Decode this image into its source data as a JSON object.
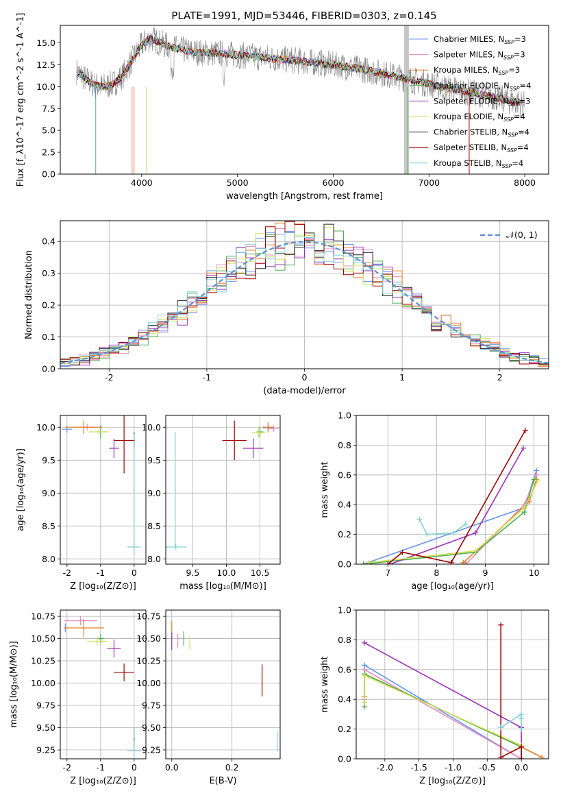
{
  "figure_title": "PLATE=1991, MJD=53446, FIBERID=0303, z=0.145",
  "colors": {
    "chabrier_miles": "#6495ED",
    "salpeter_miles": "#E78AC3",
    "kroupa_miles": "#E67E22",
    "chabrier_elodie": "#4CAF50",
    "salpeter_elodie": "#9B30B8",
    "kroupa_elodie": "#D4E157",
    "chabrier_stelib": "#202020",
    "salpeter_stelib": "#A00000",
    "kroupa_stelib": "#7FD1D8",
    "data_grey": "#808080",
    "gaussian": "#5B8ED6"
  },
  "chart_data": [
    {
      "id": "spectrum",
      "type": "line",
      "title": "PLATE=1991, MJD=53446, FIBERID=0303, z=0.145",
      "xlabel": "wavelength [Angstrom, rest frame]",
      "ylabel": "Flux [f_λ10^-17 erg cm^-2 s^-1 A^-1]",
      "xlim": [
        3150,
        8250
      ],
      "ylim": [
        0,
        17
      ],
      "xticks": [
        4000,
        5000,
        6000,
        7000,
        8000
      ],
      "yticks": [
        0.0,
        2.5,
        5.0,
        7.5,
        10.0,
        12.5,
        15.0
      ],
      "legend_placement": "upper right",
      "legend": [
        {
          "label": "Chabrier MILES, N",
          "sub": "SSP",
          "suffix": "=3",
          "color": "#6495ED"
        },
        {
          "label": "Salpeter MILES, N",
          "sub": "SSP",
          "suffix": "=3",
          "color": "#E78AC3"
        },
        {
          "label": "Kroupa MILES, N",
          "sub": "SSP",
          "suffix": "=3",
          "color": "#E67E22"
        },
        {
          "label": "Chabrier ELODIE, N",
          "sub": "SSP",
          "suffix": "=4",
          "color": "#4CAF50"
        },
        {
          "label": "Salpeter ELODIE, N",
          "sub": "SSP",
          "suffix": "=3",
          "color": "#9B30B8"
        },
        {
          "label": "Kroupa ELODIE, N",
          "sub": "SSP",
          "suffix": "=4",
          "color": "#D4E157"
        },
        {
          "label": "Chabrier STELIB, N",
          "sub": "SSP",
          "suffix": "=4",
          "color": "#202020"
        },
        {
          "label": "Salpeter STELIB, N",
          "sub": "SSP",
          "suffix": "=4",
          "color": "#A00000"
        },
        {
          "label": "Kroupa STELIB, N",
          "sub": "SSP",
          "suffix": "=4",
          "color": "#7FD1D8"
        }
      ],
      "continuum": {
        "x": [
          3300,
          3400,
          3500,
          3600,
          3700,
          3800,
          3900,
          4000,
          4100,
          4300,
          4500,
          4800,
          5200,
          5600,
          6000,
          6400,
          6800,
          7200,
          7600,
          8000
        ],
        "y": [
          12.0,
          11.0,
          10.2,
          10.0,
          10.3,
          11.2,
          13.0,
          14.8,
          15.5,
          14.5,
          14.0,
          13.8,
          13.4,
          13.0,
          12.5,
          11.8,
          10.8,
          9.8,
          9.0,
          8.0
        ]
      }
    },
    {
      "id": "residuals",
      "type": "line",
      "xlabel": "(data-model)/error",
      "ylabel": "Normed distribution",
      "xlim": [
        -2.5,
        2.5
      ],
      "ylim": [
        0,
        0.465
      ],
      "xticks": [
        -2,
        -1,
        0,
        1,
        2
      ],
      "yticks": [
        0.0,
        0.1,
        0.2,
        0.3,
        0.4
      ],
      "legend_placement": "upper right",
      "legend": [
        {
          "label": "𝒩(0, 1)",
          "color": "#5B8ED6"
        }
      ],
      "series": [
        {
          "name": "N(0,1)",
          "mu": 0,
          "sigma": 1
        }
      ]
    },
    {
      "id": "age_vs_Z",
      "type": "scatter",
      "xlabel": "Z [log₁₀(Z/Z⊙)]",
      "ylabel": "age  [log₁₀(age/yr)]",
      "xlim": [
        -2.2,
        0.35
      ],
      "ylim": [
        7.92,
        10.18
      ],
      "xticks": [
        -2,
        -1,
        0
      ],
      "yticks": [
        8.0,
        8.5,
        9.0,
        9.5,
        10.0
      ],
      "points": [
        {
          "x": -2.0,
          "y": 9.97,
          "xerr": 0.15,
          "yerr": 0.05,
          "color": "#6495ED"
        },
        {
          "x": -1.4,
          "y": 10.0,
          "xerr": 0.25,
          "yerr": 0.05,
          "color": "#E78AC3"
        },
        {
          "x": -1.5,
          "y": 10.0,
          "xerr": 0.55,
          "yerr": 0.1,
          "color": "#E67E22"
        },
        {
          "x": -1.0,
          "y": 9.93,
          "xerr": 0.15,
          "yerr": 0.1,
          "color": "#4CAF50"
        },
        {
          "x": -0.6,
          "y": 9.68,
          "xerr": 0.15,
          "yerr": 0.15,
          "color": "#9B30B8"
        },
        {
          "x": -1.05,
          "y": 9.93,
          "xerr": 0.3,
          "yerr": 0.05,
          "color": "#D4E157"
        },
        {
          "x": 0.0,
          "y": 9.8,
          "xerr": 0.02,
          "yerr": 0.12,
          "color": "#202020"
        },
        {
          "x": -0.3,
          "y": 9.8,
          "xerr": 0.3,
          "yerr": 0.5,
          "color": "#A00000"
        },
        {
          "x": 0.0,
          "y": 8.18,
          "xerr": 0.2,
          "yerr": 0.12,
          "color": "#7FD1D8"
        },
        {
          "x": 0.0,
          "y": 9.05,
          "xerr": 0.02,
          "yerr": 0.85,
          "color": "#7FD1D8"
        }
      ]
    },
    {
      "id": "age_vs_mass",
      "type": "scatter",
      "xlabel": "mass [log₁₀(M/M⊙)]",
      "ylabel": "",
      "xlim": [
        9.1,
        10.8
      ],
      "ylim": [
        7.92,
        10.18
      ],
      "xticks": [
        9.5,
        10.0,
        10.5
      ],
      "yticks": [
        8.0,
        8.5,
        9.0,
        9.5,
        10.0
      ],
      "points": [
        {
          "x": 10.62,
          "y": 9.99,
          "xerr": 0.08,
          "yerr": 0.05,
          "color": "#6495ED"
        },
        {
          "x": 10.7,
          "y": 9.98,
          "xerr": 0.08,
          "yerr": 0.05,
          "color": "#E78AC3"
        },
        {
          "x": 10.62,
          "y": 10.0,
          "xerr": 0.08,
          "yerr": 0.08,
          "color": "#E67E22"
        },
        {
          "x": 10.5,
          "y": 9.93,
          "xerr": 0.05,
          "yerr": 0.08,
          "color": "#4CAF50"
        },
        {
          "x": 10.4,
          "y": 9.68,
          "xerr": 0.15,
          "yerr": 0.15,
          "color": "#9B30B8"
        },
        {
          "x": 10.48,
          "y": 9.92,
          "xerr": 0.1,
          "yerr": 0.08,
          "color": "#D4E157"
        },
        {
          "x": 10.12,
          "y": 9.8,
          "xerr": 0.18,
          "yerr": 0.3,
          "color": "#A00000"
        },
        {
          "x": 9.25,
          "y": 8.18,
          "xerr": 0.16,
          "yerr": 0.05,
          "color": "#7FD1D8"
        },
        {
          "x": 9.24,
          "y": 9.05,
          "xerr": 0.01,
          "yerr": 0.88,
          "color": "#7FD1D8"
        }
      ]
    },
    {
      "id": "massweight_vs_age",
      "type": "line",
      "xlabel": "age  [log₁₀(age/yr)]",
      "ylabel": "mass weight",
      "xlim": [
        6.35,
        10.3
      ],
      "ylim": [
        0.0,
        1.0
      ],
      "xticks": [
        7,
        8,
        9,
        10
      ],
      "yticks": [
        0.0,
        0.2,
        0.4,
        0.6,
        0.8,
        1.0
      ],
      "series": [
        {
          "name": "Chabrier MILES",
          "color": "#6495ED",
          "x": [
            6.5,
            9.8,
            10.05
          ],
          "y": [
            0.0,
            0.38,
            0.63
          ]
        },
        {
          "name": "Salpeter MILES",
          "color": "#E78AC3",
          "x": [
            8.6,
            9.8,
            10.05
          ],
          "y": [
            0.0,
            0.4,
            0.6
          ]
        },
        {
          "name": "Kroupa MILES",
          "color": "#E67E22",
          "x": [
            8.55,
            9.9,
            10.05
          ],
          "y": [
            0.01,
            0.42,
            0.57
          ]
        },
        {
          "name": "Chabrier ELODIE",
          "color": "#4CAF50",
          "x": [
            6.5,
            8.8,
            9.8,
            10.0
          ],
          "y": [
            0.0,
            0.08,
            0.35,
            0.57
          ]
        },
        {
          "name": "Salpeter ELODIE",
          "color": "#9B30B8",
          "x": [
            7.05,
            8.8,
            9.78
          ],
          "y": [
            0.0,
            0.21,
            0.78
          ]
        },
        {
          "name": "Kroupa ELODIE",
          "color": "#D4E157",
          "x": [
            6.6,
            8.8,
            9.8,
            10.08
          ],
          "y": [
            0.01,
            0.09,
            0.38,
            0.56
          ]
        },
        {
          "name": "Salpeter STELIB",
          "color": "#A00000",
          "x": [
            7.0,
            7.3,
            8.3,
            9.82
          ],
          "y": [
            0.0,
            0.08,
            0.01,
            0.9
          ]
        },
        {
          "name": "Kroupa STELIB",
          "color": "#7FD1D8",
          "x": [
            7.65,
            7.8,
            8.35,
            8.6
          ],
          "y": [
            0.3,
            0.2,
            0.21,
            0.27
          ]
        }
      ]
    },
    {
      "id": "mass_vs_Z",
      "type": "scatter",
      "xlabel": "Z [log₁₀(Z/Z⊙)]",
      "ylabel": "mass [log₁₀(M/M⊙)]",
      "xlim": [
        -2.2,
        0.35
      ],
      "ylim": [
        9.15,
        10.82
      ],
      "xticks": [
        -2,
        -1,
        0
      ],
      "yticks": [
        9.25,
        9.5,
        9.75,
        10.0,
        10.25,
        10.5,
        10.75
      ],
      "points": [
        {
          "x": -2.05,
          "y": 10.62,
          "xerr": 0.05,
          "yerr": 0.05,
          "color": "#6495ED"
        },
        {
          "x": -1.6,
          "y": 10.7,
          "xerr": 0.5,
          "yerr": 0.05,
          "color": "#E78AC3"
        },
        {
          "x": -1.5,
          "y": 10.62,
          "xerr": 0.6,
          "yerr": 0.1,
          "color": "#E67E22"
        },
        {
          "x": -1.0,
          "y": 10.5,
          "xerr": 0.1,
          "yerr": 0.05,
          "color": "#4CAF50"
        },
        {
          "x": -0.6,
          "y": 10.39,
          "xerr": 0.2,
          "yerr": 0.1,
          "color": "#9B30B8"
        },
        {
          "x": -1.1,
          "y": 10.47,
          "xerr": 0.3,
          "yerr": 0.05,
          "color": "#D4E157"
        },
        {
          "x": 0.0,
          "y": 9.37,
          "xerr": 0.02,
          "yerr": 0.12,
          "color": "#202020"
        },
        {
          "x": -0.3,
          "y": 10.12,
          "xerr": 0.3,
          "yerr": 0.1,
          "color": "#A00000"
        },
        {
          "x": 0.0,
          "y": 9.24,
          "xerr": 0.2,
          "yerr": 0.25,
          "color": "#7FD1D8"
        }
      ]
    },
    {
      "id": "mass_vs_ebv",
      "type": "scatter",
      "xlabel": "E(B-V)",
      "ylabel": "",
      "xlim": [
        -0.02,
        0.36
      ],
      "ylim": [
        9.15,
        10.82
      ],
      "xticks": [
        0.0,
        0.2
      ],
      "yticks": [
        9.25,
        9.5,
        9.75,
        10.0,
        10.25,
        10.5,
        10.75
      ],
      "points": [
        {
          "x": 0.0,
          "y": 10.6,
          "xerr": 0,
          "yerr": 0.1,
          "color": "#E67E22"
        },
        {
          "x": 0.0,
          "y": 10.47,
          "xerr": 0,
          "yerr": 0.1,
          "color": "#9B30B8"
        },
        {
          "x": 0.02,
          "y": 10.47,
          "xerr": 0,
          "yerr": 0.08,
          "color": "#E78AC3"
        },
        {
          "x": 0.04,
          "y": 10.5,
          "xerr": 0,
          "yerr": 0.08,
          "color": "#4CAF50"
        },
        {
          "x": 0.06,
          "y": 10.45,
          "xerr": 0,
          "yerr": 0.08,
          "color": "#D4E157"
        },
        {
          "x": 0.3,
          "y": 10.03,
          "xerr": 0,
          "yerr": 0.18,
          "color": "#A00000"
        },
        {
          "x": 0.35,
          "y": 9.35,
          "xerr": 0,
          "yerr": 0.12,
          "color": "#7FD1D8"
        }
      ]
    },
    {
      "id": "massweight_vs_Z",
      "type": "line",
      "xlabel": "Z [log₁₀(Z/Z⊙)]",
      "ylabel": "mass weight",
      "xlim": [
        -2.42,
        0.4
      ],
      "ylim": [
        0.0,
        1.0
      ],
      "xticks": [
        -2.0,
        -1.5,
        -1.0,
        -0.5,
        0.0
      ],
      "yticks": [
        0.0,
        0.2,
        0.4,
        0.6,
        0.8,
        1.0
      ],
      "series": [
        {
          "name": "Chabrier MILES",
          "color": "#6495ED",
          "x": [
            -2.3,
            -2.3,
            0.0
          ],
          "y": [
            0.38,
            0.63,
            0.0
          ]
        },
        {
          "name": "Salpeter MILES",
          "color": "#E78AC3",
          "x": [
            -2.3,
            -2.3,
            0.0
          ],
          "y": [
            0.4,
            0.6,
            0.0
          ]
        },
        {
          "name": "Kroupa MILES",
          "color": "#E67E22",
          "x": [
            -2.3,
            -2.3,
            0.0,
            0.3
          ],
          "y": [
            0.42,
            0.57,
            0.08,
            0.01
          ]
        },
        {
          "name": "Chabrier ELODIE",
          "color": "#4CAF50",
          "x": [
            -2.3,
            -2.3,
            0.0
          ],
          "y": [
            0.35,
            0.57,
            0.08
          ]
        },
        {
          "name": "Salpeter ELODIE",
          "color": "#9B30B8",
          "x": [
            -2.3,
            0.0,
            0.0
          ],
          "y": [
            0.78,
            0.21,
            0.0
          ]
        },
        {
          "name": "Kroupa ELODIE",
          "color": "#D4E157",
          "x": [
            -2.3,
            -2.3,
            0.0
          ],
          "y": [
            0.38,
            0.56,
            0.09
          ]
        },
        {
          "name": "Salpeter STELIB",
          "color": "#A00000",
          "x": [
            -0.3,
            -0.3,
            0.0,
            0.0
          ],
          "y": [
            0.9,
            0.01,
            0.08,
            0.0
          ]
        },
        {
          "name": "Kroupa STELIB",
          "color": "#7FD1D8",
          "x": [
            -0.3,
            0.0,
            0.0,
            0.0
          ],
          "y": [
            0.21,
            0.3,
            0.2,
            0.27
          ]
        }
      ]
    }
  ]
}
